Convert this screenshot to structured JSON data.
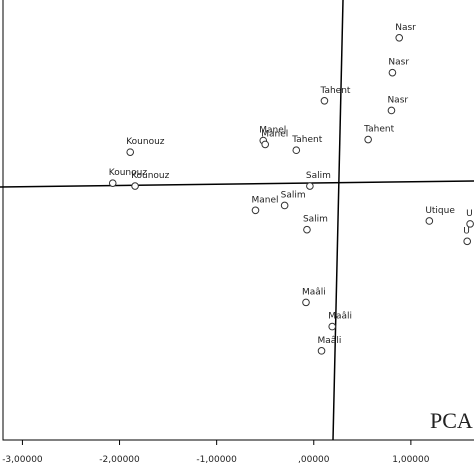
{
  "chart_data": {
    "type": "scatter",
    "annotation": "PCA",
    "labels": [
      "Nasr",
      "Nasr",
      "Nasr",
      "Tahent",
      "Tahent",
      "Tahent",
      "Manel",
      "Manel",
      "Kounouz",
      "Kounouz",
      "Kounouz",
      "Salim",
      "Salim",
      "Manel",
      "Salim",
      "Utique",
      "U",
      "U",
      "Maâli",
      "Maâli",
      "Maâli"
    ],
    "x": [
      0.88,
      0.81,
      0.8,
      0.11,
      0.56,
      -0.18,
      -0.52,
      -0.5,
      -1.89,
      -2.07,
      -1.84,
      -0.04,
      -0.3,
      -0.6,
      -0.07,
      1.19,
      1.61,
      1.58,
      -0.08,
      0.19,
      0.08
    ],
    "y": [
      1.52,
      1.16,
      0.77,
      0.87,
      0.47,
      0.36,
      0.46,
      0.42,
      0.34,
      0.02,
      -0.01,
      -0.01,
      -0.21,
      -0.26,
      -0.46,
      -0.37,
      -0.4,
      -0.58,
      -1.21,
      -1.46,
      -1.71
    ],
    "color": "#333333",
    "xlim": [
      -3.2,
      1.65
    ],
    "ylim": [
      -2.63,
      1.91
    ],
    "xticks": [
      {
        "value": -3,
        "label": "-3,00000"
      },
      {
        "value": -2,
        "label": "-2,00000"
      },
      {
        "value": -1,
        "label": "-1,00000"
      },
      {
        "value": 0,
        "label": ",00000"
      },
      {
        "value": 1,
        "label": "1,00000"
      }
    ]
  }
}
